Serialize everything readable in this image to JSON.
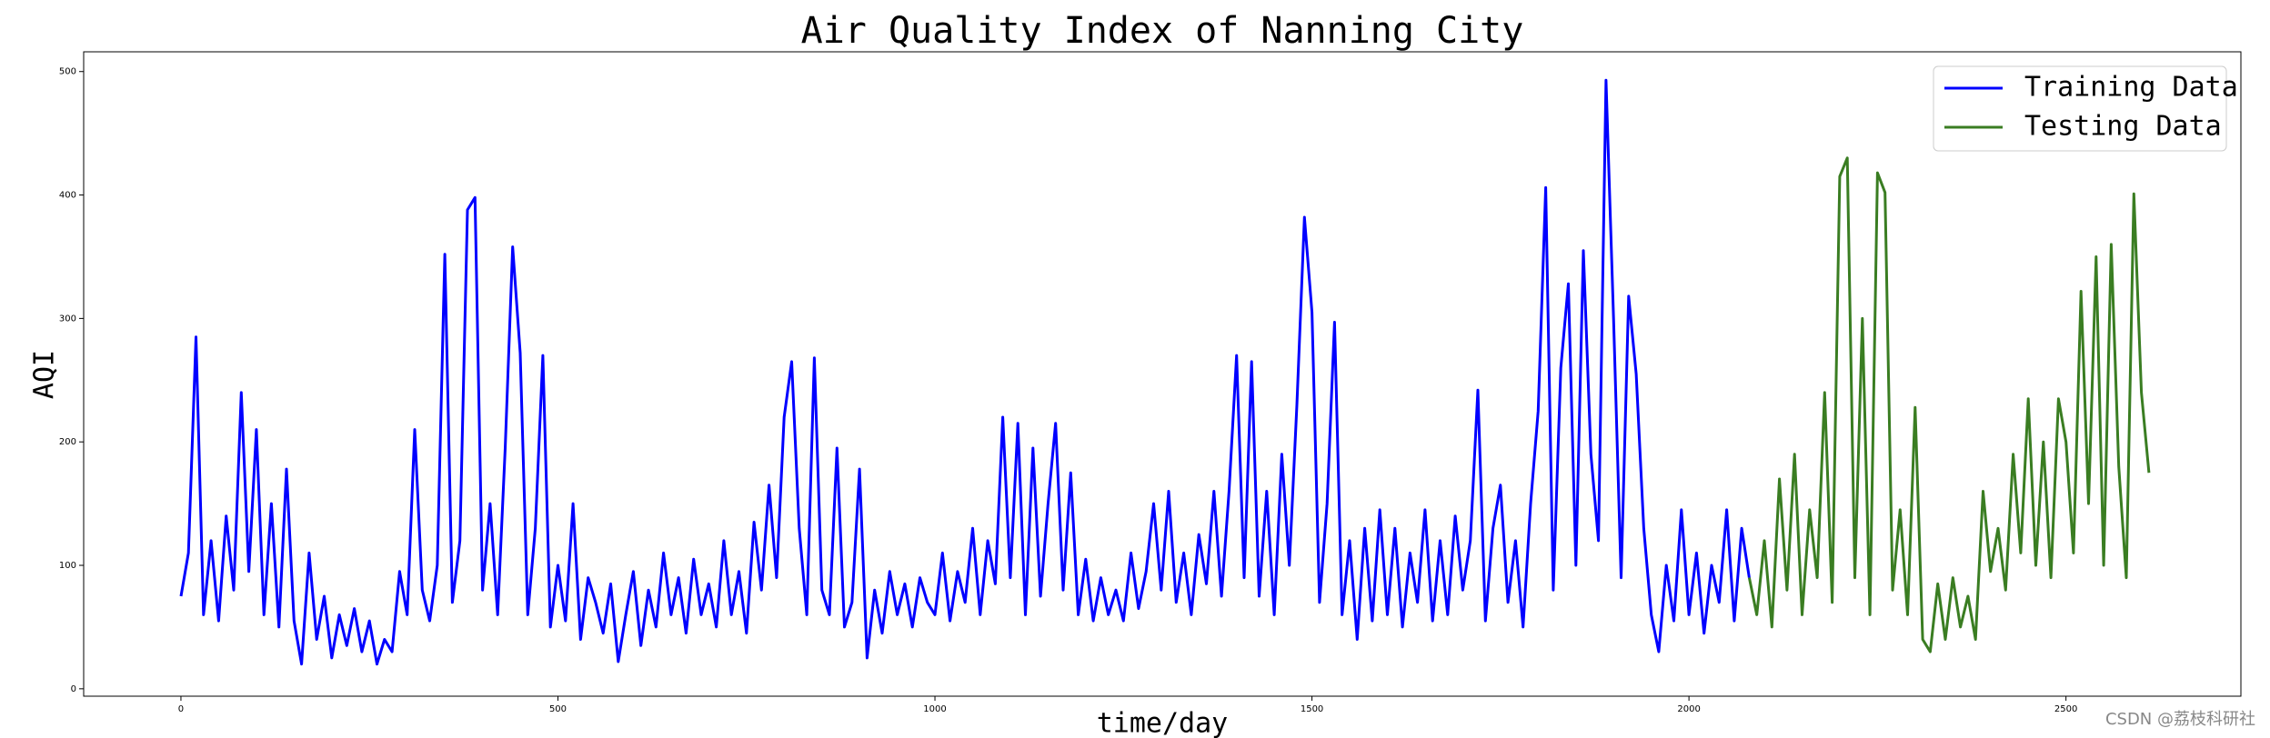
{
  "chart_data": {
    "type": "line",
    "title": "Air Quality Index of Nanning City",
    "xlabel": "time/day",
    "ylabel": "AQI",
    "xlim": [
      -129,
      2732
    ],
    "ylim": [
      -6,
      516
    ],
    "xticks": [
      0,
      500,
      1000,
      1500,
      2000,
      2500
    ],
    "yticks": [
      0,
      100,
      200,
      300,
      400,
      500
    ],
    "legend": "upper right",
    "watermark": "CSDN @荔枝科研社",
    "series": [
      {
        "name": "Training Data",
        "color": "#0000ff",
        "x": [
          0,
          10,
          20,
          30,
          40,
          50,
          60,
          70,
          80,
          90,
          100,
          110,
          120,
          130,
          140,
          150,
          160,
          170,
          180,
          190,
          200,
          210,
          220,
          230,
          240,
          250,
          260,
          270,
          280,
          290,
          300,
          310,
          320,
          330,
          340,
          350,
          360,
          370,
          380,
          390,
          400,
          410,
          420,
          430,
          440,
          450,
          460,
          470,
          480,
          490,
          500,
          510,
          520,
          530,
          540,
          550,
          560,
          570,
          580,
          590,
          600,
          610,
          620,
          630,
          640,
          650,
          660,
          670,
          680,
          690,
          700,
          710,
          720,
          730,
          740,
          750,
          760,
          770,
          780,
          790,
          800,
          810,
          820,
          830,
          840,
          850,
          860,
          870,
          880,
          890,
          900,
          910,
          920,
          930,
          940,
          950,
          960,
          970,
          980,
          990,
          1000,
          1010,
          1020,
          1030,
          1040,
          1050,
          1060,
          1070,
          1080,
          1090,
          1100,
          1110,
          1120,
          1130,
          1140,
          1150,
          1160,
          1170,
          1180,
          1190,
          1200,
          1210,
          1220,
          1230,
          1240,
          1250,
          1260,
          1270,
          1280,
          1290,
          1300,
          1310,
          1320,
          1330,
          1340,
          1350,
          1360,
          1370,
          1380,
          1390,
          1400,
          1410,
          1420,
          1430,
          1440,
          1450,
          1460,
          1470,
          1480,
          1490,
          1500,
          1510,
          1520,
          1530,
          1540,
          1550,
          1560,
          1570,
          1580,
          1590,
          1600,
          1610,
          1620,
          1630,
          1640,
          1650,
          1660,
          1670,
          1680,
          1690,
          1700,
          1710,
          1720,
          1730,
          1740,
          1750,
          1760,
          1770,
          1780,
          1790,
          1800,
          1810,
          1820,
          1830,
          1840,
          1850,
          1860,
          1870,
          1880,
          1890,
          1900,
          1910,
          1920,
          1930,
          1940,
          1950,
          1960,
          1970,
          1980,
          1990,
          2000,
          2010,
          2020,
          2030,
          2040,
          2050,
          2060,
          2070,
          2080
        ],
        "values": [
          75,
          110,
          285,
          60,
          120,
          55,
          140,
          80,
          240,
          95,
          210,
          60,
          150,
          50,
          178,
          55,
          20,
          110,
          40,
          75,
          25,
          60,
          35,
          65,
          30,
          55,
          20,
          40,
          30,
          95,
          60,
          210,
          80,
          55,
          100,
          352,
          70,
          120,
          388,
          398,
          80,
          150,
          60,
          195,
          358,
          272,
          60,
          130,
          270,
          50,
          100,
          55,
          150,
          40,
          90,
          70,
          45,
          85,
          22,
          60,
          95,
          35,
          80,
          50,
          110,
          60,
          90,
          45,
          105,
          60,
          85,
          50,
          120,
          60,
          95,
          45,
          135,
          80,
          165,
          90,
          220,
          265,
          130,
          60,
          268,
          80,
          60,
          195,
          50,
          70,
          178,
          25,
          80,
          45,
          95,
          60,
          85,
          50,
          90,
          70,
          60,
          110,
          55,
          95,
          70,
          130,
          60,
          120,
          85,
          220,
          90,
          215,
          60,
          195,
          75,
          150,
          215,
          80,
          175,
          60,
          105,
          55,
          90,
          60,
          80,
          55,
          110,
          65,
          95,
          150,
          80,
          160,
          70,
          110,
          60,
          125,
          85,
          160,
          75,
          160,
          270,
          90,
          265,
          75,
          160,
          60,
          190,
          100,
          230,
          382,
          305,
          70,
          150,
          297,
          60,
          120,
          40,
          130,
          55,
          145,
          60,
          130,
          50,
          110,
          70,
          145,
          55,
          120,
          60,
          140,
          80,
          120,
          242,
          55,
          130,
          165,
          70,
          120,
          50,
          150,
          225,
          406,
          80,
          260,
          328,
          100,
          355,
          190,
          120,
          493,
          300,
          90,
          318,
          255,
          130,
          60,
          30,
          100,
          55,
          145,
          60,
          110,
          45,
          100,
          70,
          145,
          55,
          130,
          90
        ]
      },
      {
        "name": "Testing Data",
        "color": "#3a7d22",
        "x": [
          2080,
          2090,
          2100,
          2110,
          2120,
          2130,
          2140,
          2150,
          2160,
          2170,
          2180,
          2190,
          2200,
          2210,
          2220,
          2230,
          2240,
          2250,
          2260,
          2270,
          2280,
          2290,
          2300,
          2310,
          2320,
          2330,
          2340,
          2350,
          2360,
          2370,
          2380,
          2390,
          2400,
          2410,
          2420,
          2430,
          2440,
          2450,
          2460,
          2470,
          2480,
          2490,
          2500,
          2510,
          2520,
          2530,
          2540,
          2550,
          2560,
          2570,
          2580,
          2590,
          2600,
          2610
        ],
        "values": [
          90,
          60,
          120,
          50,
          170,
          80,
          190,
          60,
          145,
          90,
          240,
          70,
          415,
          430,
          90,
          300,
          60,
          418,
          402,
          80,
          145,
          60,
          228,
          40,
          30,
          85,
          40,
          90,
          50,
          75,
          40,
          160,
          95,
          130,
          80,
          190,
          110,
          235,
          100,
          200,
          90,
          235,
          200,
          110,
          322,
          150,
          350,
          100,
          360,
          180,
          90,
          401,
          240,
          175
        ]
      }
    ]
  }
}
